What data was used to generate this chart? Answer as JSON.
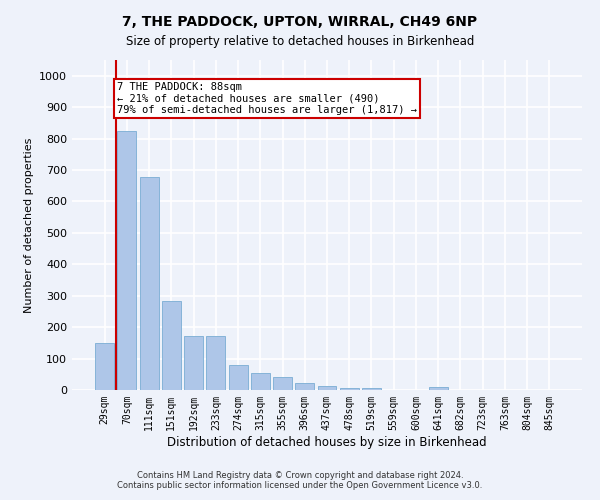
{
  "title_line1": "7, THE PADDOCK, UPTON, WIRRAL, CH49 6NP",
  "title_line2": "Size of property relative to detached houses in Birkenhead",
  "xlabel": "Distribution of detached houses by size in Birkenhead",
  "ylabel": "Number of detached properties",
  "categories": [
    "29sqm",
    "70sqm",
    "111sqm",
    "151sqm",
    "192sqm",
    "233sqm",
    "274sqm",
    "315sqm",
    "355sqm",
    "396sqm",
    "437sqm",
    "478sqm",
    "519sqm",
    "559sqm",
    "600sqm",
    "641sqm",
    "682sqm",
    "723sqm",
    "763sqm",
    "804sqm",
    "845sqm"
  ],
  "values": [
    148,
    825,
    678,
    283,
    172,
    172,
    80,
    55,
    40,
    22,
    12,
    7,
    7,
    0,
    0,
    10,
    0,
    0,
    0,
    0,
    0
  ],
  "bar_color": "#aec6e8",
  "bar_edge_color": "#7aadd4",
  "background_color": "#eef2fa",
  "grid_color": "#ffffff",
  "vline_color": "#cc0000",
  "annotation_text": "7 THE PADDOCK: 88sqm\n← 21% of detached houses are smaller (490)\n79% of semi-detached houses are larger (1,817) →",
  "annotation_box_color": "#ffffff",
  "annotation_box_edge": "#cc0000",
  "footnote1": "Contains HM Land Registry data © Crown copyright and database right 2024.",
  "footnote2": "Contains public sector information licensed under the Open Government Licence v3.0.",
  "ylim": [
    0,
    1050
  ],
  "yticks": [
    0,
    100,
    200,
    300,
    400,
    500,
    600,
    700,
    800,
    900,
    1000
  ]
}
